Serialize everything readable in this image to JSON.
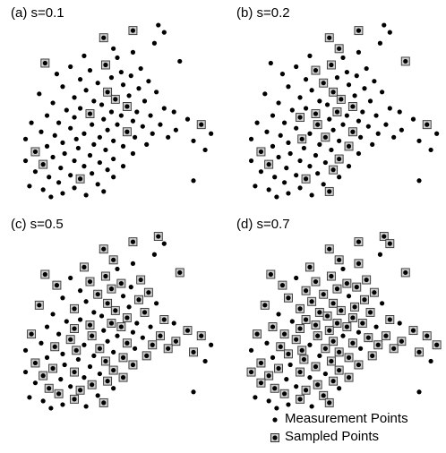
{
  "chart_data": [
    {
      "type": "scatter",
      "title": "(a) s=0.1",
      "sampling_fraction": 0.1,
      "xlim": [
        0,
        1
      ],
      "ylim": [
        0,
        1
      ]
    },
    {
      "type": "scatter",
      "title": "(b) s=0.2",
      "sampling_fraction": 0.2,
      "xlim": [
        0,
        1
      ],
      "ylim": [
        0,
        1
      ]
    },
    {
      "type": "scatter",
      "title": "(c) s=0.5",
      "sampling_fraction": 0.5,
      "xlim": [
        0,
        1
      ],
      "ylim": [
        0,
        1
      ]
    },
    {
      "type": "scatter",
      "title": "(d) s=0.7",
      "sampling_fraction": 0.7,
      "xlim": [
        0,
        1
      ],
      "ylim": [
        0,
        1
      ]
    }
  ],
  "measurement_points": [
    [
      0.71,
      0.97
    ],
    [
      0.58,
      0.94
    ],
    [
      0.74,
      0.93
    ],
    [
      0.43,
      0.9
    ],
    [
      0.69,
      0.87
    ],
    [
      0.48,
      0.84
    ],
    [
      0.58,
      0.82
    ],
    [
      0.33,
      0.8
    ],
    [
      0.5,
      0.79
    ],
    [
      0.82,
      0.77
    ],
    [
      0.13,
      0.76
    ],
    [
      0.44,
      0.75
    ],
    [
      0.26,
      0.74
    ],
    [
      0.62,
      0.73
    ],
    [
      0.36,
      0.72
    ],
    [
      0.52,
      0.71
    ],
    [
      0.19,
      0.7
    ],
    [
      0.57,
      0.69
    ],
    [
      0.47,
      0.68
    ],
    [
      0.31,
      0.67
    ],
    [
      0.66,
      0.66
    ],
    [
      0.4,
      0.65
    ],
    [
      0.53,
      0.64
    ],
    [
      0.22,
      0.63
    ],
    [
      0.61,
      0.62
    ],
    [
      0.34,
      0.61
    ],
    [
      0.45,
      0.6
    ],
    [
      0.7,
      0.6
    ],
    [
      0.1,
      0.59
    ],
    [
      0.56,
      0.58
    ],
    [
      0.28,
      0.57
    ],
    [
      0.49,
      0.56
    ],
    [
      0.38,
      0.55
    ],
    [
      0.64,
      0.55
    ],
    [
      0.17,
      0.54
    ],
    [
      0.42,
      0.53
    ],
    [
      0.55,
      0.52
    ],
    [
      0.31,
      0.51
    ],
    [
      0.74,
      0.51
    ],
    [
      0.24,
      0.5
    ],
    [
      0.47,
      0.49
    ],
    [
      0.6,
      0.49
    ],
    [
      0.79,
      0.49
    ],
    [
      0.36,
      0.48
    ],
    [
      0.14,
      0.47
    ],
    [
      0.52,
      0.47
    ],
    [
      0.67,
      0.47
    ],
    [
      0.28,
      0.46
    ],
    [
      0.43,
      0.45
    ],
    [
      0.86,
      0.45
    ],
    [
      0.58,
      0.44
    ],
    [
      0.06,
      0.43
    ],
    [
      0.2,
      0.43
    ],
    [
      0.37,
      0.42
    ],
    [
      0.5,
      0.42
    ],
    [
      0.72,
      0.42
    ],
    [
      0.93,
      0.42
    ],
    [
      0.63,
      0.41
    ],
    [
      0.26,
      0.4
    ],
    [
      0.45,
      0.39
    ],
    [
      0.8,
      0.39
    ],
    [
      0.11,
      0.38
    ],
    [
      0.55,
      0.38
    ],
    [
      0.33,
      0.37
    ],
    [
      0.68,
      0.37
    ],
    [
      0.98,
      0.37
    ],
    [
      0.18,
      0.36
    ],
    [
      0.41,
      0.35
    ],
    [
      0.59,
      0.35
    ],
    [
      0.76,
      0.35
    ],
    [
      0.03,
      0.34
    ],
    [
      0.29,
      0.34
    ],
    [
      0.48,
      0.33
    ],
    [
      0.89,
      0.33
    ],
    [
      0.22,
      0.32
    ],
    [
      0.38,
      0.31
    ],
    [
      0.65,
      0.31
    ],
    [
      0.14,
      0.3
    ],
    [
      0.53,
      0.3
    ],
    [
      0.3,
      0.29
    ],
    [
      0.44,
      0.28
    ],
    [
      0.95,
      0.28
    ],
    [
      0.08,
      0.27
    ],
    [
      0.23,
      0.26
    ],
    [
      0.58,
      0.26
    ],
    [
      0.36,
      0.25
    ],
    [
      0.17,
      0.24
    ],
    [
      0.48,
      0.23
    ],
    [
      0.03,
      0.22
    ],
    [
      0.28,
      0.22
    ],
    [
      0.41,
      0.21
    ],
    [
      0.12,
      0.2
    ],
    [
      0.33,
      0.19
    ],
    [
      0.53,
      0.19
    ],
    [
      0.21,
      0.18
    ],
    [
      0.45,
      0.17
    ],
    [
      0.08,
      0.16
    ],
    [
      0.37,
      0.15
    ],
    [
      0.26,
      0.14
    ],
    [
      0.15,
      0.13
    ],
    [
      0.48,
      0.13
    ],
    [
      0.31,
      0.12
    ],
    [
      0.89,
      0.11
    ],
    [
      0.2,
      0.1
    ],
    [
      0.4,
      0.09
    ],
    [
      0.05,
      0.08
    ],
    [
      0.28,
      0.07
    ],
    [
      0.12,
      0.06
    ],
    [
      0.43,
      0.05
    ],
    [
      0.22,
      0.04
    ],
    [
      0.34,
      0.03
    ],
    [
      0.16,
      0.02
    ]
  ],
  "sampled_indices": [
    [
      1,
      3,
      10,
      11,
      26,
      31,
      36,
      43,
      56,
      62,
      82,
      91,
      101
    ],
    [
      1,
      3,
      5,
      9,
      11,
      14,
      21,
      26,
      31,
      36,
      40,
      43,
      47,
      53,
      56,
      62,
      67,
      71,
      78,
      82,
      87,
      91,
      95,
      101,
      108
    ],
    [
      0,
      1,
      3,
      5,
      7,
      9,
      10,
      11,
      13,
      14,
      15,
      16,
      18,
      20,
      21,
      24,
      26,
      28,
      30,
      31,
      33,
      36,
      38,
      40,
      43,
      45,
      47,
      49,
      51,
      53,
      55,
      56,
      58,
      60,
      62,
      64,
      66,
      67,
      69,
      71,
      73,
      76,
      78,
      80,
      82,
      84,
      86,
      87,
      89,
      91,
      93,
      95,
      97,
      99,
      101,
      103,
      106,
      108
    ],
    [
      0,
      1,
      2,
      3,
      5,
      6,
      7,
      9,
      10,
      11,
      13,
      14,
      15,
      16,
      17,
      18,
      19,
      20,
      21,
      23,
      24,
      25,
      26,
      28,
      29,
      30,
      31,
      32,
      33,
      35,
      36,
      37,
      38,
      40,
      41,
      43,
      44,
      45,
      47,
      48,
      49,
      51,
      52,
      53,
      55,
      56,
      57,
      58,
      59,
      60,
      62,
      64,
      65,
      66,
      67,
      69,
      71,
      72,
      73,
      74,
      76,
      78,
      79,
      80,
      82,
      84,
      85,
      86,
      87,
      88,
      89,
      91,
      93,
      95,
      96,
      97,
      99,
      101,
      103,
      104,
      106,
      108
    ]
  ],
  "legend": {
    "measurement_label": "Measurement Points",
    "sampled_label": "Sampled Points"
  },
  "colors": {
    "point": "#000000",
    "sample_box_fill": "#cfcfcf",
    "sample_box_stroke": "#333333"
  }
}
